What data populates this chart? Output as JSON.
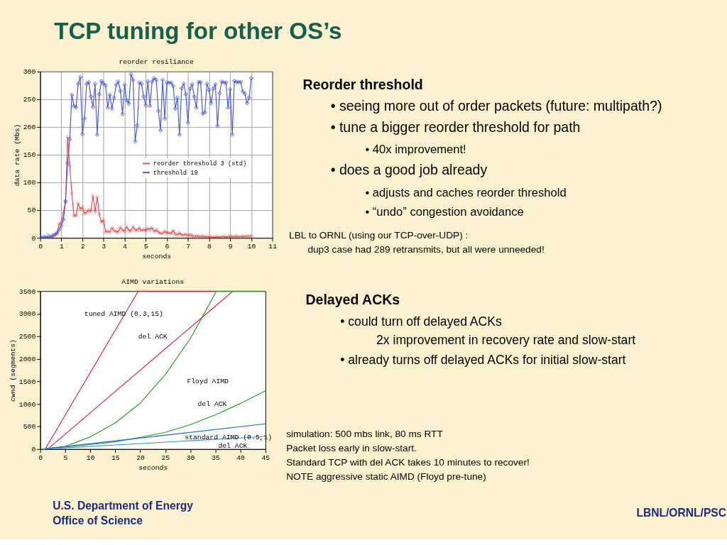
{
  "chart_data": [
    {
      "type": "other",
      "title": "TCP tuning for other OS’s"
    },
    {
      "type": "line",
      "title": "reorder resiliance",
      "xlabel": "seconds",
      "ylabel": "data rate (Mbs)",
      "xlim": [
        0,
        11
      ],
      "xticks": [
        0,
        1,
        2,
        3,
        4,
        5,
        6,
        7,
        8,
        9,
        10,
        11
      ],
      "ylim": [
        0,
        300
      ],
      "yticks": [
        0,
        50,
        100,
        150,
        200,
        250,
        300
      ],
      "grid": true,
      "legend": "right",
      "x": [
        0,
        0.1,
        0.2,
        0.3,
        0.4,
        0.5,
        0.6,
        0.7,
        0.8,
        0.9,
        1,
        1.1,
        1.2,
        1.3,
        1.4,
        1.5,
        1.6,
        1.7,
        1.8,
        1.9,
        2,
        2.1,
        2.2,
        2.3,
        2.4,
        2.5,
        2.6,
        2.7,
        2.8,
        2.9,
        3,
        3.1,
        3.2,
        3.3,
        3.4,
        3.5,
        3.6,
        3.7,
        3.8,
        3.9,
        4,
        4.1,
        4.2,
        4.3,
        4.4,
        4.5,
        4.6,
        4.7,
        4.8,
        4.9,
        5,
        5.1,
        5.2,
        5.3,
        5.4,
        5.5,
        5.6,
        5.7,
        5.8,
        5.9,
        6,
        6.1,
        6.2,
        6.3,
        6.4,
        6.5,
        6.6,
        6.7,
        6.8,
        6.9,
        7,
        7.1,
        7.2,
        7.3,
        7.4,
        7.5,
        7.6,
        7.7,
        7.8,
        7.9,
        8,
        8.1,
        8.2,
        8.3,
        8.4,
        8.5,
        8.6,
        8.7,
        8.8,
        8.9,
        9,
        9.1,
        9.2,
        9.3,
        9.4,
        9.5,
        9.6,
        9.7,
        9.8,
        9.9,
        10
      ],
      "series": [
        {
          "name": "reorder threshold 3 (std)",
          "color": "#f04848",
          "marker": "diamond",
          "values": [
            null,
            null,
            null,
            null,
            null,
            2,
            3,
            5,
            10,
            25,
            28,
            45,
            67,
            182,
            130,
            80,
            40,
            40,
            62,
            52,
            55,
            44,
            46,
            50,
            48,
            75,
            47,
            73,
            42,
            28,
            32,
            10,
            12,
            10,
            18,
            13,
            11,
            11,
            19,
            14,
            12,
            20,
            13,
            13,
            20,
            14,
            14,
            18,
            13,
            15,
            13,
            17,
            15,
            18,
            11,
            14,
            10,
            8,
            8,
            12,
            9,
            9,
            8,
            13,
            7,
            5,
            9,
            5,
            5,
            7,
            4,
            6,
            3,
            3,
            3,
            3,
            2,
            3,
            2,
            2,
            1,
            2,
            1,
            1,
            2,
            1,
            2,
            2,
            1,
            2,
            3,
            2,
            2,
            3,
            2,
            2,
            3,
            2,
            3,
            3,
            3
          ]
        },
        {
          "name": "threshold 19",
          "color": "#4858e0",
          "marker": "cross",
          "values": [
            1,
            0,
            2,
            0,
            3,
            1,
            4,
            6,
            8,
            15,
            22,
            33,
            65,
            135,
            178,
            258,
            238,
            235,
            278,
            290,
            187,
            215,
            278,
            281,
            255,
            236,
            278,
            186,
            259,
            283,
            278,
            275,
            235,
            258,
            233,
            253,
            276,
            282,
            265,
            223,
            276,
            248,
            242,
            295,
            285,
            174,
            203,
            280,
            278,
            255,
            239,
            282,
            238,
            282,
            288,
            285,
            229,
            194,
            285,
            215,
            280,
            280,
            280,
            274,
            233,
            253,
            186,
            270,
            278,
            259,
            208,
            269,
            277,
            255,
            235,
            281,
            281,
            224,
            226,
            278,
            267,
            243,
            269,
            277,
            202,
            261,
            282,
            280,
            280,
            235,
            268,
            186,
            283,
            281,
            281,
            281,
            264,
            260,
            243,
            253,
            288
          ]
        }
      ]
    },
    {
      "type": "other",
      "title": "Reorder threshold",
      "annotations": [
        "• seeing more out of order packets (future: multipath?)",
        "• tune a bigger reorder threshold for path",
        "• 40x improvement!",
        "• does a good job already",
        "• adjusts and caches reorder threshold",
        "• “undo” congestion avoidance",
        "LBL to ORNL (using our TCP-over-UDP) :",
        "dup3 case had 289 retransmits, but all were unneeded!"
      ]
    },
    {
      "type": "line",
      "title": "AIMD variations",
      "xlabel": "seconds",
      "ylabel": "cwnd (segments)",
      "xlim": [
        0,
        45
      ],
      "xticks": [
        0,
        5,
        10,
        15,
        20,
        25,
        30,
        35,
        40,
        45
      ],
      "ylim": [
        0,
        3500
      ],
      "yticks": [
        0,
        500,
        1000,
        1500,
        2000,
        2500,
        3000,
        3500
      ],
      "series": [
        {
          "color": "#e0203a",
          "x": [
            1,
            19.6,
            35.2
          ],
          "values": [
            0,
            3500,
            3500
          ]
        },
        {
          "color": "#e0203a",
          "x": [
            1.5,
            38.5
          ],
          "values": [
            0,
            3500
          ]
        },
        {
          "color": "#20a028",
          "x": [
            0.5,
            5,
            10,
            15,
            20,
            25,
            30,
            33,
            35.2,
            45
          ],
          "values": [
            0,
            60,
            270,
            580,
            1020,
            1650,
            2450,
            3050,
            3500,
            3500
          ]
        },
        {
          "color": "#20a028",
          "x": [
            0.5,
            5,
            10,
            15,
            20,
            25,
            30,
            35,
            40,
            45
          ],
          "values": [
            0,
            50,
            100,
            160,
            260,
            370,
            540,
            760,
            1010,
            1290
          ]
        },
        {
          "color": "#1a6ad8",
          "x": [
            0.5,
            45
          ],
          "values": [
            0,
            560
          ]
        },
        {
          "color": "#3a90e0",
          "x": [
            0.5,
            45
          ],
          "values": [
            0,
            280
          ]
        }
      ],
      "annotations": [
        {
          "text": "tuned AIMD (0.3,15)",
          "x": 16.7,
          "y": 3000
        },
        "del ACK",
        "Floyd AIMD",
        "del ACK",
        {
          "text": "standard AIMD (0.5,1)",
          "x": 37.6,
          "y": 270
        },
        "del ACK"
      ]
    },
    {
      "type": "other",
      "title": "Delayed ACKs",
      "annotations": [
        "• could turn off delayed ACKs",
        "2x improvement in recovery rate and slow-start",
        "• already turns off delayed ACKs for initial slow-start",
        "simulation: 500 mbs link, 80 ms RTT",
        "Packet  loss early in slow-start.",
        "Standard TCP with del ACK takes 10 minutes to recover!",
        "NOTE aggressive static AIMD (Floyd pre-tune)"
      ]
    },
    {
      "type": "other",
      "annotations": [
        "U.S. Department of Energy",
        "Office of Science",
        "LBNL/ORNL/PSC"
      ]
    }
  ]
}
